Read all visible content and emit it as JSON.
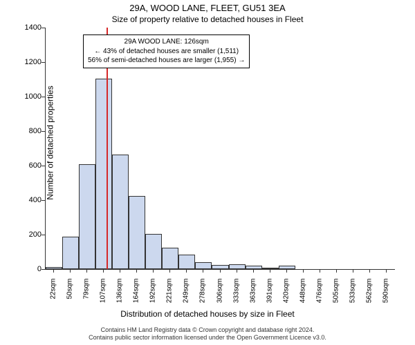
{
  "chart": {
    "type": "histogram",
    "title_main": "29A, WOOD LANE, FLEET, GU51 3EA",
    "title_sub": "Size of property relative to detached houses in Fleet",
    "ylabel": "Number of detached properties",
    "xlabel": "Distribution of detached houses by size in Fleet",
    "ylim": [
      0,
      1400
    ],
    "ytick_step": 200,
    "yticks": [
      0,
      200,
      400,
      600,
      800,
      1000,
      1200,
      1400
    ],
    "xticks": [
      "22sqm",
      "50sqm",
      "79sqm",
      "107sqm",
      "136sqm",
      "164sqm",
      "192sqm",
      "221sqm",
      "249sqm",
      "278sqm",
      "306sqm",
      "333sqm",
      "363sqm",
      "391sqm",
      "420sqm",
      "448sqm",
      "476sqm",
      "505sqm",
      "533sqm",
      "562sqm",
      "590sqm"
    ],
    "bar_fill": "#ccd8ee",
    "bar_border": "#333333",
    "background_color": "#ffffff",
    "values": [
      12,
      190,
      610,
      1105,
      665,
      425,
      205,
      125,
      85,
      40,
      25,
      28,
      20,
      10,
      22,
      0,
      0,
      0,
      0,
      0,
      0
    ],
    "vline_index": 3.7,
    "vline_color": "#d62728",
    "annotation": {
      "line1": "29A WOOD LANE: 126sqm",
      "line2": "← 43% of detached houses are smaller (1,511)",
      "line3": "56% of semi-detached houses are larger (1,955) →"
    },
    "footer_line1": "Contains HM Land Registry data © Crown copyright and database right 2024.",
    "footer_line2": "Contains public sector information licensed under the Open Government Licence v3.0."
  }
}
